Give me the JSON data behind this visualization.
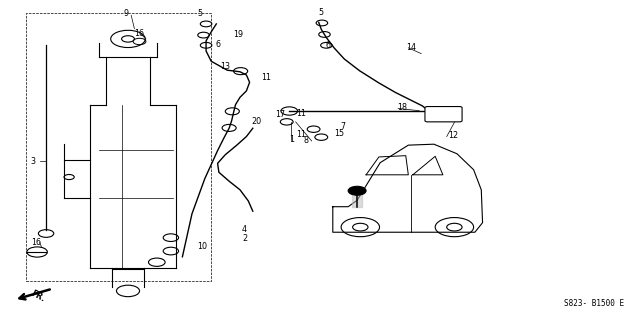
{
  "bg_color": "#ffffff",
  "line_color": "#000000",
  "fig_width": 6.4,
  "fig_height": 3.19,
  "diagram_code": "S823- B1500 E"
}
